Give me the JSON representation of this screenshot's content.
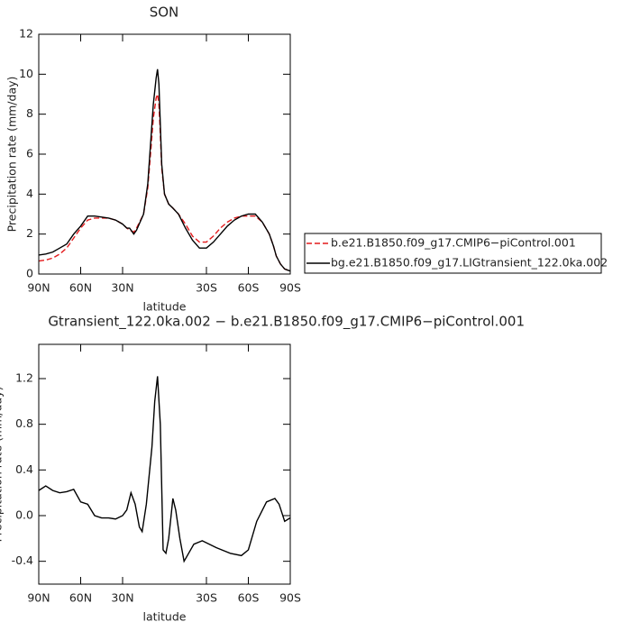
{
  "chart_data": [
    {
      "type": "line",
      "title": "SON",
      "x_label": "latitude",
      "y_label": "Precipitation rate (mm/day)",
      "x": [
        90,
        85,
        80,
        75,
        70,
        65,
        60,
        55,
        50,
        45,
        40,
        35,
        30,
        27,
        25,
        22,
        20,
        15,
        12,
        10,
        8,
        6,
        5,
        4,
        3,
        2,
        0,
        -3,
        -6,
        -10,
        -15,
        -20,
        -25,
        -30,
        -35,
        -40,
        -45,
        -50,
        -55,
        -60,
        -65,
        -70,
        -75,
        -78,
        -80,
        -83,
        -86,
        -88,
        -90
      ],
      "series": [
        {
          "name": "b.e21.B1850.f09_g17.CMIP6−piControl.001",
          "color": "#e41a1c",
          "linestyle": "dashed",
          "values": [
            0.65,
            0.7,
            0.8,
            1.0,
            1.3,
            1.8,
            2.3,
            2.7,
            2.8,
            2.8,
            2.8,
            2.7,
            2.5,
            2.3,
            2.2,
            2.1,
            2.3,
            3.0,
            4.3,
            6.0,
            7.8,
            8.8,
            9.0,
            8.5,
            7.0,
            5.3,
            4.0,
            3.5,
            3.3,
            3.0,
            2.5,
            1.9,
            1.6,
            1.6,
            1.9,
            2.3,
            2.6,
            2.8,
            2.9,
            2.9,
            2.9,
            2.6,
            2.0,
            1.4,
            0.9,
            0.5,
            0.25,
            0.2,
            0.15
          ]
        },
        {
          "name": "bg.e21.B1850.f09_g17.LIGtransient_122.0ka.002",
          "color": "#000000",
          "linestyle": "solid",
          "values": [
            0.95,
            1.0,
            1.1,
            1.3,
            1.5,
            2.0,
            2.4,
            2.9,
            2.9,
            2.85,
            2.8,
            2.7,
            2.5,
            2.3,
            2.3,
            2.0,
            2.2,
            3.0,
            4.5,
            6.5,
            8.5,
            9.8,
            10.25,
            9.5,
            7.5,
            5.5,
            4.0,
            3.5,
            3.3,
            3.0,
            2.3,
            1.7,
            1.3,
            1.3,
            1.6,
            2.0,
            2.4,
            2.7,
            2.9,
            3.0,
            3.0,
            2.6,
            2.0,
            1.4,
            0.9,
            0.5,
            0.25,
            0.2,
            0.15
          ]
        }
      ],
      "xlim": [
        90,
        -90
      ],
      "xticks": [
        {
          "value": 90,
          "label": "90N"
        },
        {
          "value": 60,
          "label": "60N"
        },
        {
          "value": 30,
          "label": "30N"
        },
        {
          "value": -30,
          "label": "30S"
        },
        {
          "value": -60,
          "label": "60S"
        },
        {
          "value": -90,
          "label": "90S"
        }
      ],
      "ylim": [
        0,
        12
      ],
      "yticks": [
        0,
        2,
        4,
        6,
        8,
        10,
        12
      ],
      "legend": "right"
    },
    {
      "type": "line",
      "title": "Gtransient_122.0ka.002 − b.e21.B1850.f09_g17.CMIP6−piControl.001",
      "x_label": "latitude",
      "y_label": "Precipitation rate (mm/day)",
      "x": [
        90,
        85,
        80,
        75,
        70,
        65,
        60,
        55,
        50,
        45,
        40,
        35,
        30,
        27,
        24,
        21,
        18,
        16,
        13,
        9,
        7,
        5,
        3,
        1,
        -1,
        -3,
        -6,
        -8,
        -11,
        -14,
        -21,
        -27,
        -37,
        -47,
        -55,
        -60,
        -66,
        -73,
        -79,
        -82,
        -86,
        -90
      ],
      "series": [
        {
          "color": "#000000",
          "linestyle": "solid",
          "values": [
            0.22,
            0.26,
            0.22,
            0.2,
            0.21,
            0.23,
            0.12,
            0.1,
            0.0,
            -0.02,
            -0.02,
            -0.03,
            0.0,
            0.05,
            0.2,
            0.1,
            -0.1,
            -0.14,
            0.1,
            0.6,
            1.0,
            1.22,
            0.8,
            -0.3,
            -0.33,
            -0.2,
            0.15,
            0.05,
            -0.2,
            -0.4,
            -0.25,
            -0.22,
            -0.28,
            -0.33,
            -0.35,
            -0.3,
            -0.05,
            0.12,
            0.15,
            0.1,
            -0.05,
            -0.02
          ]
        }
      ],
      "xlim": [
        90,
        -90
      ],
      "xticks": [
        {
          "value": 90,
          "label": "90N"
        },
        {
          "value": 60,
          "label": "60N"
        },
        {
          "value": 30,
          "label": "30N"
        },
        {
          "value": -30,
          "label": "30S"
        },
        {
          "value": -60,
          "label": "60S"
        },
        {
          "value": -90,
          "label": "90S"
        }
      ],
      "ylim": [
        -0.6,
        1.5
      ],
      "yticks": [
        -0.4,
        {
          "value": 0,
          "label": "0.0"
        },
        0.4,
        0.8,
        1.2
      ]
    }
  ]
}
